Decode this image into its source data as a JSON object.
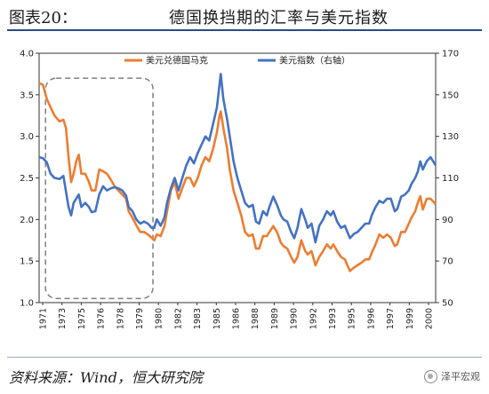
{
  "header": {
    "figure_label": "图表20：",
    "title": "德国换挡期的汇率与美元指数"
  },
  "footer": {
    "source": "资料来源：Wind，恒大研究院",
    "watermark": "泽平宏观"
  },
  "chart_data": {
    "type": "line",
    "title": "德国换挡期的汇率与美元指数",
    "xlabel": "",
    "ylabel": "",
    "x_start_year": 1971,
    "x_end_year": 2002,
    "x_tick_labels": [
      "1971",
      "1973",
      "1975",
      "1976",
      "1978",
      "1979",
      "1980",
      "1982",
      "1983",
      "1985",
      "1986",
      "1988",
      "1989",
      "1990",
      "1992",
      "1993",
      "1995",
      "1996",
      "1997",
      "1999",
      "2000"
    ],
    "y_left": {
      "min": 1.0,
      "max": 4.0,
      "ticks": [
        "1.0",
        "1.5",
        "2.0",
        "2.5",
        "3.0",
        "3.5",
        "4.0"
      ]
    },
    "y_right": {
      "min": 50,
      "max": 170,
      "ticks": [
        "50",
        "70",
        "90",
        "110",
        "130",
        "150",
        "170"
      ]
    },
    "grid": false,
    "legend_position": "top-center",
    "highlight_box": {
      "x_from": 1971.5,
      "x_to": 1979.9,
      "y_from": 1.05,
      "y_to": 3.7,
      "style": "dashed"
    },
    "series": [
      {
        "name": "美元兑德国马克",
        "axis": "left",
        "color": "#ed7d31",
        "points": [
          [
            1971.0,
            3.64
          ],
          [
            1971.3,
            3.62
          ],
          [
            1971.6,
            3.45
          ],
          [
            1971.9,
            3.35
          ],
          [
            1972.2,
            3.25
          ],
          [
            1972.6,
            3.18
          ],
          [
            1972.9,
            3.2
          ],
          [
            1973.1,
            3.1
          ],
          [
            1973.3,
            2.75
          ],
          [
            1973.5,
            2.45
          ],
          [
            1973.7,
            2.55
          ],
          [
            1973.9,
            2.7
          ],
          [
            1974.1,
            2.78
          ],
          [
            1974.3,
            2.55
          ],
          [
            1974.6,
            2.55
          ],
          [
            1974.9,
            2.45
          ],
          [
            1975.1,
            2.35
          ],
          [
            1975.4,
            2.35
          ],
          [
            1975.7,
            2.6
          ],
          [
            1976.0,
            2.58
          ],
          [
            1976.3,
            2.55
          ],
          [
            1976.6,
            2.48
          ],
          [
            1976.9,
            2.4
          ],
          [
            1977.2,
            2.35
          ],
          [
            1977.5,
            2.3
          ],
          [
            1977.8,
            2.25
          ],
          [
            1978.0,
            2.1
          ],
          [
            1978.3,
            2.02
          ],
          [
            1978.6,
            1.93
          ],
          [
            1978.9,
            1.85
          ],
          [
            1979.2,
            1.85
          ],
          [
            1979.5,
            1.82
          ],
          [
            1979.8,
            1.78
          ],
          [
            1980.0,
            1.75
          ],
          [
            1980.2,
            1.82
          ],
          [
            1980.5,
            1.8
          ],
          [
            1980.8,
            1.92
          ],
          [
            1981.0,
            2.1
          ],
          [
            1981.3,
            2.35
          ],
          [
            1981.6,
            2.45
          ],
          [
            1981.9,
            2.25
          ],
          [
            1982.2,
            2.38
          ],
          [
            1982.5,
            2.5
          ],
          [
            1982.8,
            2.5
          ],
          [
            1983.1,
            2.4
          ],
          [
            1983.4,
            2.5
          ],
          [
            1983.7,
            2.65
          ],
          [
            1984.0,
            2.75
          ],
          [
            1984.3,
            2.7
          ],
          [
            1984.6,
            2.85
          ],
          [
            1984.9,
            3.05
          ],
          [
            1985.1,
            3.25
          ],
          [
            1985.2,
            3.3
          ],
          [
            1985.4,
            3.1
          ],
          [
            1985.7,
            2.85
          ],
          [
            1985.9,
            2.6
          ],
          [
            1986.2,
            2.35
          ],
          [
            1986.5,
            2.2
          ],
          [
            1986.8,
            2.05
          ],
          [
            1987.1,
            1.85
          ],
          [
            1987.4,
            1.8
          ],
          [
            1987.7,
            1.82
          ],
          [
            1987.95,
            1.65
          ],
          [
            1988.2,
            1.65
          ],
          [
            1988.5,
            1.8
          ],
          [
            1988.8,
            1.8
          ],
          [
            1989.0,
            1.85
          ],
          [
            1989.3,
            1.92
          ],
          [
            1989.6,
            1.85
          ],
          [
            1989.9,
            1.72
          ],
          [
            1990.1,
            1.68
          ],
          [
            1990.4,
            1.65
          ],
          [
            1990.7,
            1.55
          ],
          [
            1990.95,
            1.48
          ],
          [
            1991.2,
            1.55
          ],
          [
            1991.5,
            1.75
          ],
          [
            1991.8,
            1.62
          ],
          [
            1992.0,
            1.58
          ],
          [
            1992.3,
            1.62
          ],
          [
            1992.6,
            1.45
          ],
          [
            1992.9,
            1.55
          ],
          [
            1993.2,
            1.62
          ],
          [
            1993.5,
            1.7
          ],
          [
            1993.8,
            1.65
          ],
          [
            1994.0,
            1.7
          ],
          [
            1994.3,
            1.62
          ],
          [
            1994.6,
            1.55
          ],
          [
            1994.9,
            1.52
          ],
          [
            1995.1,
            1.45
          ],
          [
            1995.3,
            1.38
          ],
          [
            1995.6,
            1.42
          ],
          [
            1995.9,
            1.45
          ],
          [
            1996.2,
            1.48
          ],
          [
            1996.5,
            1.52
          ],
          [
            1996.8,
            1.52
          ],
          [
            1997.0,
            1.6
          ],
          [
            1997.3,
            1.7
          ],
          [
            1997.6,
            1.82
          ],
          [
            1997.9,
            1.78
          ],
          [
            1998.2,
            1.82
          ],
          [
            1998.5,
            1.78
          ],
          [
            1998.8,
            1.68
          ],
          [
            1999.0,
            1.7
          ],
          [
            1999.3,
            1.85
          ],
          [
            1999.6,
            1.85
          ],
          [
            1999.9,
            1.95
          ],
          [
            2000.1,
            2.02
          ],
          [
            2000.4,
            2.1
          ],
          [
            2000.6,
            2.2
          ],
          [
            2000.8,
            2.28
          ],
          [
            2001.0,
            2.12
          ],
          [
            2001.3,
            2.25
          ],
          [
            2001.6,
            2.25
          ],
          [
            2001.9,
            2.2
          ],
          [
            2002.0,
            2.18
          ]
        ]
      },
      {
        "name": "美元指数（右轴）",
        "axis": "right",
        "color": "#4472c4",
        "points": [
          [
            1971.0,
            120.0
          ],
          [
            1971.3,
            119.5
          ],
          [
            1971.6,
            117.5
          ],
          [
            1971.9,
            112.0
          ],
          [
            1972.2,
            110.0
          ],
          [
            1972.6,
            109.5
          ],
          [
            1972.9,
            111.0
          ],
          [
            1973.1,
            103.5
          ],
          [
            1973.3,
            96.0
          ],
          [
            1973.5,
            92.0
          ],
          [
            1973.7,
            98.0
          ],
          [
            1973.9,
            100.0
          ],
          [
            1974.1,
            102.0
          ],
          [
            1974.3,
            96.0
          ],
          [
            1974.6,
            98.0
          ],
          [
            1974.9,
            96.0
          ],
          [
            1975.1,
            93.5
          ],
          [
            1975.4,
            94.0
          ],
          [
            1975.7,
            102.0
          ],
          [
            1976.0,
            106.0
          ],
          [
            1976.3,
            104.0
          ],
          [
            1976.6,
            105.0
          ],
          [
            1976.9,
            105.5
          ],
          [
            1977.2,
            105.0
          ],
          [
            1977.5,
            104.0
          ],
          [
            1977.8,
            101.5
          ],
          [
            1978.0,
            96.0
          ],
          [
            1978.3,
            94.0
          ],
          [
            1978.6,
            90.0
          ],
          [
            1978.9,
            88.0
          ],
          [
            1979.2,
            89.0
          ],
          [
            1979.5,
            88.0
          ],
          [
            1979.8,
            86.0
          ],
          [
            1980.0,
            86.0
          ],
          [
            1980.2,
            90.0
          ],
          [
            1980.5,
            87.0
          ],
          [
            1980.8,
            91.0
          ],
          [
            1981.0,
            98.0
          ],
          [
            1981.3,
            105.0
          ],
          [
            1981.6,
            110.0
          ],
          [
            1981.9,
            104.0
          ],
          [
            1982.2,
            110.0
          ],
          [
            1982.5,
            116.0
          ],
          [
            1982.8,
            120.0
          ],
          [
            1983.1,
            117.0
          ],
          [
            1983.4,
            122.0
          ],
          [
            1983.7,
            126.0
          ],
          [
            1984.0,
            130.0
          ],
          [
            1984.3,
            128.0
          ],
          [
            1984.6,
            136.0
          ],
          [
            1984.9,
            144.0
          ],
          [
            1985.1,
            155.0
          ],
          [
            1985.2,
            160.0
          ],
          [
            1985.4,
            148.0
          ],
          [
            1985.7,
            138.0
          ],
          [
            1985.9,
            130.0
          ],
          [
            1986.2,
            118.0
          ],
          [
            1986.5,
            110.0
          ],
          [
            1986.8,
            104.0
          ],
          [
            1987.1,
            98.0
          ],
          [
            1987.4,
            96.0
          ],
          [
            1987.7,
            97.0
          ],
          [
            1987.95,
            89.0
          ],
          [
            1988.2,
            88.0
          ],
          [
            1988.5,
            94.0
          ],
          [
            1988.8,
            92.0
          ],
          [
            1989.0,
            96.0
          ],
          [
            1989.3,
            101.0
          ],
          [
            1989.6,
            97.0
          ],
          [
            1989.9,
            92.0
          ],
          [
            1990.1,
            90.0
          ],
          [
            1990.4,
            89.0
          ],
          [
            1990.7,
            84.0
          ],
          [
            1990.95,
            81.0
          ],
          [
            1991.2,
            86.0
          ],
          [
            1991.5,
            95.0
          ],
          [
            1991.8,
            90.0
          ],
          [
            1992.0,
            86.0
          ],
          [
            1992.3,
            88.0
          ],
          [
            1992.6,
            79.0
          ],
          [
            1992.9,
            87.0
          ],
          [
            1993.2,
            90.0
          ],
          [
            1993.5,
            94.0
          ],
          [
            1993.8,
            92.0
          ],
          [
            1994.0,
            94.0
          ],
          [
            1994.3,
            89.0
          ],
          [
            1994.6,
            86.0
          ],
          [
            1994.9,
            87.0
          ],
          [
            1995.1,
            84.0
          ],
          [
            1995.3,
            81.0
          ],
          [
            1995.6,
            83.0
          ],
          [
            1995.9,
            84.0
          ],
          [
            1996.2,
            86.0
          ],
          [
            1996.5,
            88.0
          ],
          [
            1996.8,
            88.0
          ],
          [
            1997.0,
            92.0
          ],
          [
            1997.3,
            96.0
          ],
          [
            1997.6,
            99.0
          ],
          [
            1997.9,
            98.0
          ],
          [
            1998.2,
            100.0
          ],
          [
            1998.5,
            100.0
          ],
          [
            1998.8,
            94.0
          ],
          [
            1999.0,
            95.0
          ],
          [
            1999.3,
            101.0
          ],
          [
            1999.6,
            102.0
          ],
          [
            1999.9,
            104.0
          ],
          [
            2000.1,
            107.0
          ],
          [
            2000.4,
            110.0
          ],
          [
            2000.6,
            113.0
          ],
          [
            2000.8,
            118.0
          ],
          [
            2001.0,
            114.0
          ],
          [
            2001.3,
            118.0
          ],
          [
            2001.6,
            120.0
          ],
          [
            2001.9,
            117.0
          ],
          [
            2002.0,
            116.0
          ]
        ]
      }
    ]
  }
}
